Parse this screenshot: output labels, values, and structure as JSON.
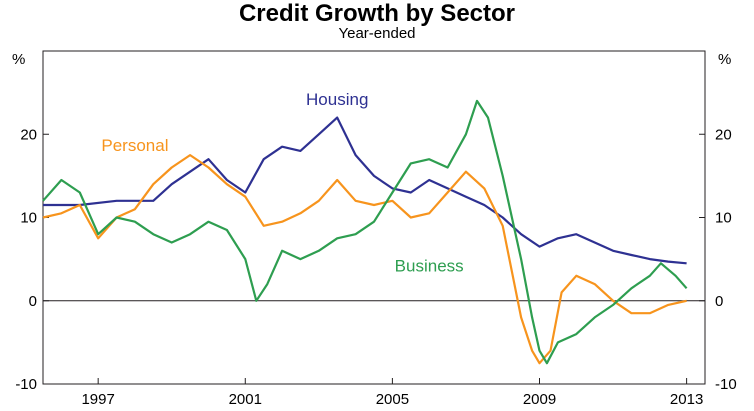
{
  "chart_data": {
    "type": "line",
    "title": "Credit Growth by Sector",
    "subtitle": "Year-ended",
    "ylabel_left": "%",
    "ylabel_right": "%",
    "xlim": [
      1995.5,
      2013.5
    ],
    "ylim": [
      -10,
      30
    ],
    "y_ticks": [
      -10,
      0,
      10,
      20
    ],
    "y_tick_labels": [
      "-10",
      "0",
      "10",
      "20"
    ],
    "x_ticks": [
      1997,
      2001,
      2005,
      2009,
      2013
    ],
    "x_tick_labels": [
      "1997",
      "2001",
      "2005",
      "2009",
      "2013"
    ],
    "zero_line": true,
    "series": [
      {
        "name": "Housing",
        "color": "#2e3192",
        "x": [
          1995.5,
          1996.5,
          1997.5,
          1998.5,
          1999.0,
          1999.5,
          2000.0,
          2000.5,
          2001.0,
          2001.5,
          2002.0,
          2002.5,
          2003.0,
          2003.5,
          2004.0,
          2004.5,
          2005.0,
          2005.5,
          2006.0,
          2006.5,
          2007.0,
          2007.5,
          2008.0,
          2008.5,
          2009.0,
          2009.5,
          2010.0,
          2010.5,
          2011.0,
          2011.5,
          2012.0,
          2012.5,
          2013.0
        ],
        "values": [
          11.5,
          11.5,
          12.0,
          12.0,
          14.0,
          15.5,
          17.0,
          14.5,
          13.0,
          17.0,
          18.5,
          18.0,
          20.0,
          22.0,
          17.5,
          15.0,
          13.5,
          13.0,
          14.5,
          13.5,
          12.5,
          11.5,
          10.0,
          8.0,
          6.5,
          7.5,
          8.0,
          7.0,
          6.0,
          5.5,
          5.0,
          4.7,
          4.5
        ]
      },
      {
        "name": "Personal",
        "color": "#f7941d",
        "x": [
          1995.5,
          1996.0,
          1996.5,
          1997.0,
          1997.5,
          1998.0,
          1998.5,
          1999.0,
          1999.5,
          2000.0,
          2000.5,
          2001.0,
          2001.5,
          2002.0,
          2002.5,
          2003.0,
          2003.5,
          2004.0,
          2004.5,
          2005.0,
          2005.5,
          2006.0,
          2006.5,
          2007.0,
          2007.5,
          2008.0,
          2008.5,
          2008.8,
          2009.0,
          2009.3,
          2009.6,
          2010.0,
          2010.5,
          2011.0,
          2011.5,
          2012.0,
          2012.5,
          2013.0
        ],
        "values": [
          10.0,
          10.5,
          11.5,
          7.5,
          10.0,
          11.0,
          14.0,
          16.0,
          17.5,
          16.0,
          14.0,
          12.5,
          9.0,
          9.5,
          10.5,
          12.0,
          14.5,
          12.0,
          11.5,
          12.0,
          10.0,
          10.5,
          13.0,
          15.5,
          13.5,
          9.0,
          -2.0,
          -6.0,
          -7.5,
          -6.0,
          1.0,
          3.0,
          2.0,
          0.0,
          -1.5,
          -1.5,
          -0.5,
          0.0
        ]
      },
      {
        "name": "Business",
        "color": "#2e9e50",
        "x": [
          1995.5,
          1996.0,
          1996.5,
          1997.0,
          1997.5,
          1998.0,
          1998.5,
          1999.0,
          1999.5,
          2000.0,
          2000.5,
          2001.0,
          2001.3,
          2001.6,
          2002.0,
          2002.5,
          2003.0,
          2003.5,
          2004.0,
          2004.5,
          2005.0,
          2005.5,
          2006.0,
          2006.5,
          2007.0,
          2007.3,
          2007.6,
          2008.0,
          2008.5,
          2008.8,
          2009.0,
          2009.2,
          2009.5,
          2010.0,
          2010.5,
          2011.0,
          2011.5,
          2012.0,
          2012.3,
          2012.7,
          2013.0
        ],
        "values": [
          12.0,
          14.5,
          13.0,
          8.0,
          10.0,
          9.5,
          8.0,
          7.0,
          8.0,
          9.5,
          8.5,
          5.0,
          0.0,
          2.0,
          6.0,
          5.0,
          6.0,
          7.5,
          8.0,
          9.5,
          13.0,
          16.5,
          17.0,
          16.0,
          20.0,
          24.0,
          22.0,
          15.0,
          5.0,
          -2.0,
          -6.0,
          -7.5,
          -5.0,
          -4.0,
          -2.0,
          -0.5,
          1.5,
          3.0,
          4.5,
          3.0,
          1.5
        ]
      }
    ],
    "annotations": [
      {
        "text": "Housing",
        "series": 0,
        "at_x": 2003.5,
        "at_y": 23.5
      },
      {
        "text": "Personal",
        "series": 1,
        "at_x": 1998.0,
        "at_y": 18.0
      },
      {
        "text": "Business",
        "series": 2,
        "at_x": 2006.0,
        "at_y": 3.5
      }
    ]
  }
}
